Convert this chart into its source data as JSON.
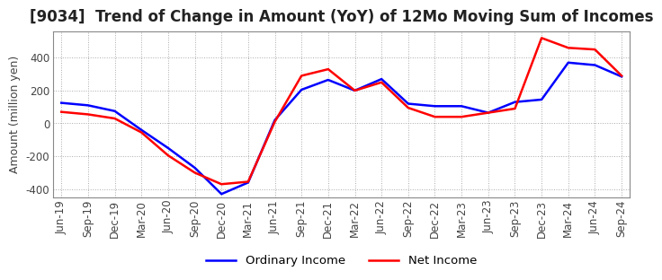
{
  "title": "[9034]  Trend of Change in Amount (YoY) of 12Mo Moving Sum of Incomes",
  "ylabel": "Amount (million yen)",
  "x_labels": [
    "Jun-19",
    "Sep-19",
    "Dec-19",
    "Mar-20",
    "Jun-20",
    "Sep-20",
    "Dec-20",
    "Mar-21",
    "Jun-21",
    "Sep-21",
    "Dec-21",
    "Mar-22",
    "Jun-22",
    "Sep-22",
    "Dec-22",
    "Mar-23",
    "Jun-23",
    "Sep-23",
    "Dec-23",
    "Mar-24",
    "Jun-24",
    "Sep-24"
  ],
  "ordinary_income": [
    125,
    110,
    75,
    -40,
    -150,
    -270,
    -430,
    -360,
    20,
    205,
    265,
    200,
    270,
    120,
    105,
    105,
    65,
    130,
    145,
    370,
    355,
    285
  ],
  "net_income": [
    70,
    55,
    30,
    -55,
    -195,
    -300,
    -370,
    -355,
    10,
    290,
    330,
    200,
    250,
    95,
    40,
    40,
    65,
    90,
    520,
    460,
    450,
    290
  ],
  "ordinary_color": "#0000ff",
  "net_color": "#ff0000",
  "ylim": [
    -450,
    560
  ],
  "yticks": [
    -400,
    -200,
    0,
    200,
    400
  ],
  "grid_color": "#aaaaaa",
  "background_color": "#ffffff",
  "title_fontsize": 12,
  "label_fontsize": 9,
  "tick_fontsize": 8.5
}
